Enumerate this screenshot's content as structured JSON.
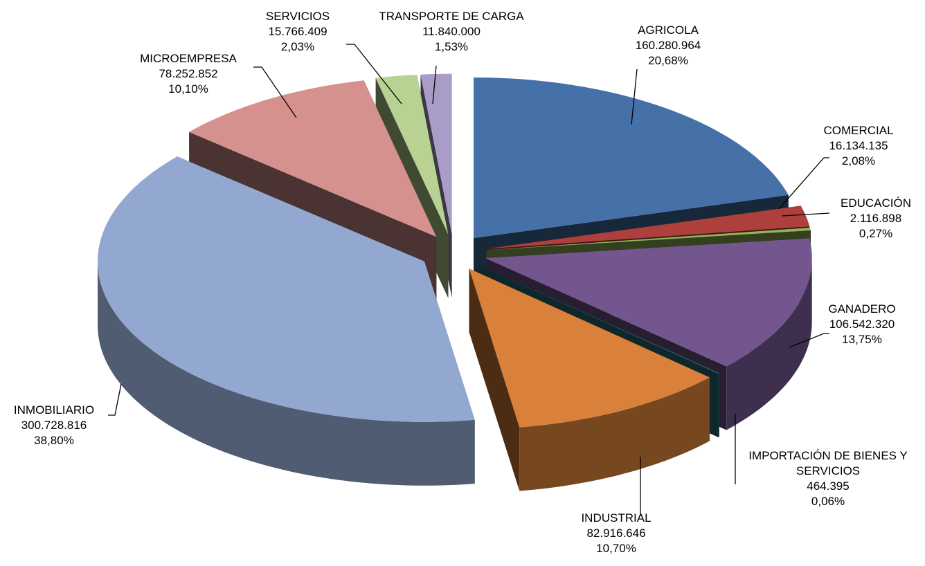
{
  "chart_data": {
    "type": "pie3d",
    "categories": [
      "AGRICOLA",
      "COMERCIAL",
      "EDUCACIÓN",
      "GANADERO",
      "IMPORTACIÓN DE BIENES Y SERVICIOS",
      "INDUSTRIAL",
      "INMOBILIARIO",
      "MICROEMPRESA",
      "SERVICIOS",
      "TRANSPORTE DE CARGA"
    ],
    "values": [
      160280964,
      16134135,
      2116898,
      106542320,
      464395,
      82916646,
      300728816,
      78252852,
      15766409,
      11840000
    ],
    "value_labels": [
      "160.280.964",
      "16.134.135",
      "2.116.898",
      "106.542.320",
      "464.395",
      "82.916.646",
      "300.728.816",
      "78.252.852",
      "15.766.409",
      "11.840.000"
    ],
    "percentages": [
      20.68,
      2.08,
      0.27,
      13.75,
      0.06,
      10.7,
      38.8,
      10.1,
      2.03,
      1.53
    ],
    "percentage_labels": [
      "20,68%",
      "2,08%",
      "0,27%",
      "13,75%",
      "0,06%",
      "10,70%",
      "38,80%",
      "10,10%",
      "2,03%",
      "1,53%"
    ],
    "colors": [
      "#4571a8",
      "#ad3f3c",
      "#93b356",
      "#72568d",
      "#2a6f7c",
      "#d9813a",
      "#92a8d0",
      "#d4918e",
      "#b8d293",
      "#a99cc6"
    ]
  }
}
